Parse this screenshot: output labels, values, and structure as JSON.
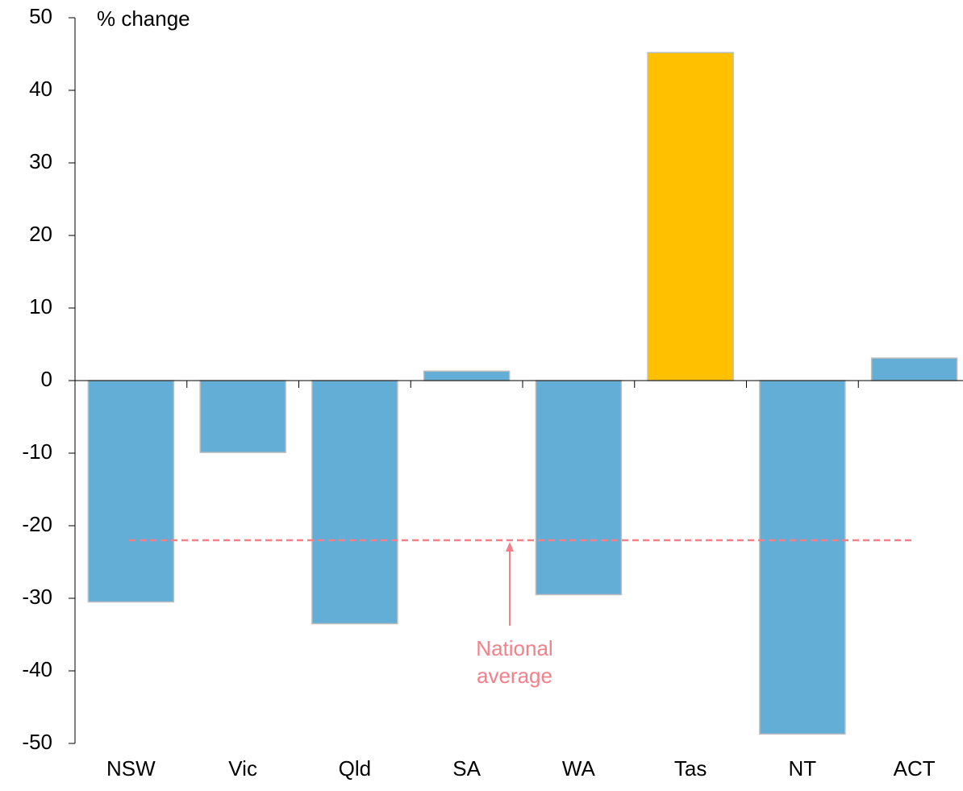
{
  "chart_data": {
    "type": "bar",
    "y_label": "% change",
    "categories": [
      "NSW",
      "Vic",
      "Qld",
      "SA",
      "WA",
      "Tas",
      "NT",
      "ACT"
    ],
    "values": [
      -30.5,
      -9.9,
      -33.5,
      1.3,
      -29.5,
      45.2,
      -48.7,
      3.1
    ],
    "colors": [
      "#62aed6",
      "#62aed6",
      "#62aed6",
      "#62aed6",
      "#62aed6",
      "#ffc000",
      "#62aed6",
      "#62aed6"
    ],
    "ylim": [
      -50,
      50
    ],
    "yticks": [
      -50,
      -40,
      -30,
      -20,
      -10,
      0,
      10,
      20,
      30,
      40,
      50
    ],
    "reference_line": {
      "value": -22,
      "label_lines": [
        "National",
        "average"
      ],
      "color": "#f4808a"
    }
  }
}
